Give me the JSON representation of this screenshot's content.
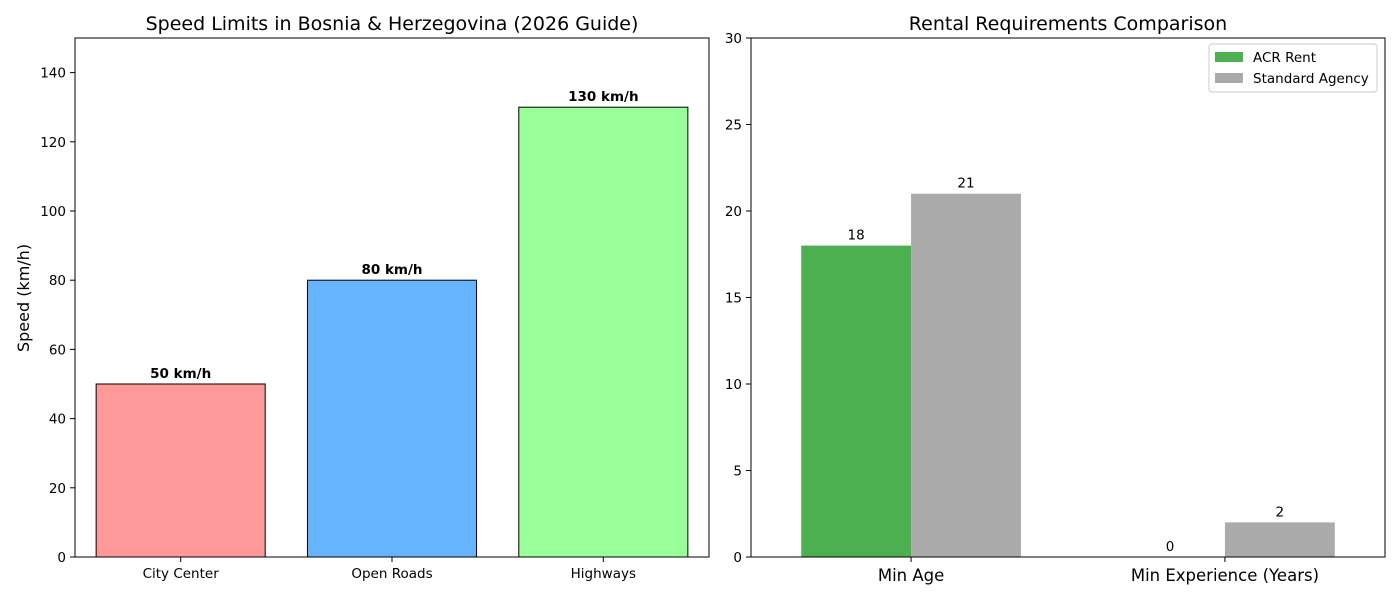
{
  "chart_data": [
    {
      "type": "bar",
      "title": "Speed Limits in Bosnia & Herzegovina (2026 Guide)",
      "xlabel": "",
      "ylabel": "Speed (km/h)",
      "ylim": [
        0,
        150
      ],
      "yticks": [
        0,
        20,
        40,
        60,
        80,
        100,
        120,
        140
      ],
      "categories": [
        "City Center",
        "Open Roads",
        "Highways"
      ],
      "values": [
        50,
        80,
        130
      ],
      "data_labels": [
        "50 km/h",
        "80 km/h",
        "130 km/h"
      ],
      "colors": [
        "#ff9999",
        "#66b3ff",
        "#99ff99"
      ],
      "edge_color": "#000000",
      "grid": false
    },
    {
      "type": "bar",
      "title": "Rental Requirements Comparison",
      "xlabel": "",
      "ylabel": "",
      "ylim": [
        0,
        30
      ],
      "yticks": [
        0,
        5,
        10,
        15,
        20,
        25,
        30
      ],
      "categories": [
        "Min Age",
        "Min Experience (Years)"
      ],
      "series": [
        {
          "name": "ACR Rent",
          "values": [
            18,
            0
          ],
          "color": "#4caf50"
        },
        {
          "name": "Standard Agency",
          "values": [
            21,
            2
          ],
          "color": "#aaaaaa"
        }
      ],
      "legend": "top-right",
      "grid": false
    }
  ]
}
